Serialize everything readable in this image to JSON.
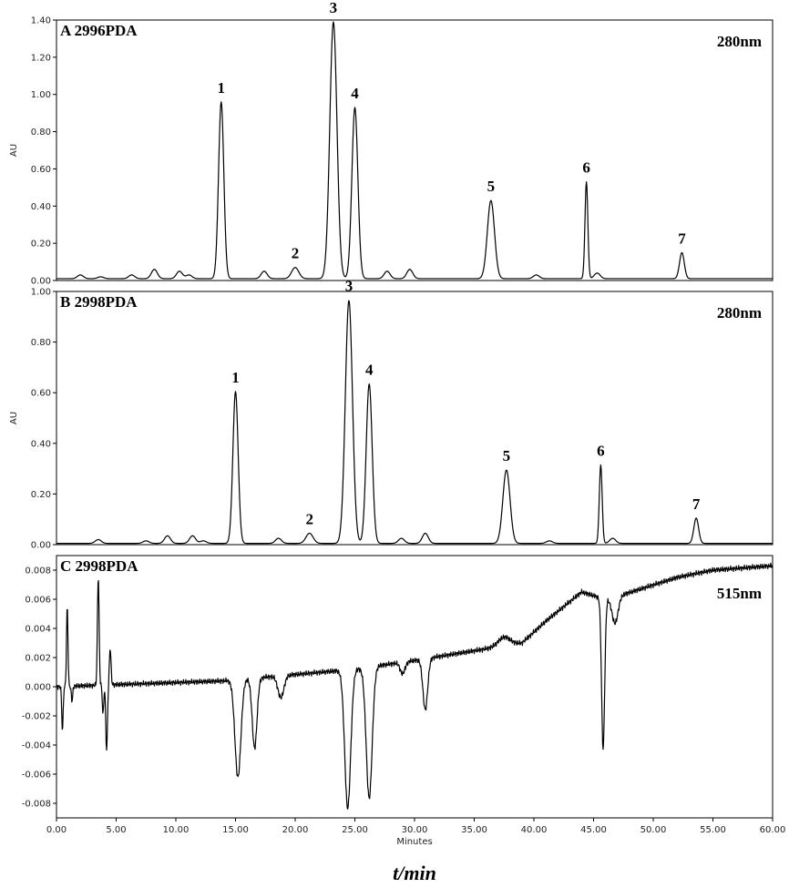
{
  "chart_data": [
    {
      "type": "line",
      "panel": "A",
      "title": "A 2996PDA",
      "wavelength": "280nm",
      "ylabel": "AU",
      "xlim": [
        0,
        60
      ],
      "ylim": [
        0,
        1.4
      ],
      "yticks": [
        0.0,
        0.2,
        0.4,
        0.6,
        0.8,
        1.0,
        1.2,
        1.4
      ],
      "ytick_labels": [
        "0.00",
        "0.20",
        "0.40",
        "0.60",
        "0.80",
        "1.00",
        "1.20",
        "1.40"
      ],
      "baseline": 0.01,
      "peaks": [
        {
          "label": "1",
          "t": 13.8,
          "h": 0.95,
          "w": 0.22
        },
        {
          "label": "2",
          "t": 20.0,
          "h": 0.06,
          "w": 0.3
        },
        {
          "label": "3",
          "t": 23.2,
          "h": 1.38,
          "w": 0.3
        },
        {
          "label": "4",
          "t": 25.0,
          "h": 0.92,
          "w": 0.25
        },
        {
          "label": "5",
          "t": 36.4,
          "h": 0.42,
          "w": 0.3
        },
        {
          "label": "6",
          "t": 44.4,
          "h": 0.52,
          "w": 0.12
        },
        {
          "label": "7",
          "t": 52.4,
          "h": 0.14,
          "w": 0.2
        }
      ],
      "minor_peaks": [
        {
          "t": 2.0,
          "h": 0.02
        },
        {
          "t": 3.7,
          "h": 0.01
        },
        {
          "t": 6.3,
          "h": 0.02
        },
        {
          "t": 8.2,
          "h": 0.05
        },
        {
          "t": 10.3,
          "h": 0.04
        },
        {
          "t": 11.1,
          "h": 0.02
        },
        {
          "t": 17.4,
          "h": 0.04
        },
        {
          "t": 27.7,
          "h": 0.04
        },
        {
          "t": 29.6,
          "h": 0.05
        },
        {
          "t": 40.2,
          "h": 0.02
        },
        {
          "t": 45.3,
          "h": 0.03
        }
      ]
    },
    {
      "type": "line",
      "panel": "B",
      "title": "B 2998PDA",
      "wavelength": "280nm",
      "ylabel": "AU",
      "xlim": [
        0,
        60
      ],
      "ylim": [
        0,
        1.0
      ],
      "yticks": [
        0.0,
        0.2,
        0.4,
        0.6,
        0.8,
        1.0
      ],
      "ytick_labels": [
        "0.00",
        "0.20",
        "0.40",
        "0.60",
        "0.80",
        "1.00"
      ],
      "baseline": 0.005,
      "peaks": [
        {
          "label": "1",
          "t": 15.0,
          "h": 0.6,
          "w": 0.22
        },
        {
          "label": "2",
          "t": 21.2,
          "h": 0.04,
          "w": 0.3
        },
        {
          "label": "3",
          "t": 24.5,
          "h": 0.96,
          "w": 0.3
        },
        {
          "label": "4",
          "t": 26.2,
          "h": 0.63,
          "w": 0.25
        },
        {
          "label": "5",
          "t": 37.7,
          "h": 0.29,
          "w": 0.3
        },
        {
          "label": "6",
          "t": 45.6,
          "h": 0.31,
          "w": 0.12
        },
        {
          "label": "7",
          "t": 53.6,
          "h": 0.1,
          "w": 0.2
        }
      ],
      "minor_peaks": [
        {
          "t": 3.5,
          "h": 0.015
        },
        {
          "t": 7.5,
          "h": 0.01
        },
        {
          "t": 9.3,
          "h": 0.03
        },
        {
          "t": 11.4,
          "h": 0.03
        },
        {
          "t": 12.3,
          "h": 0.01
        },
        {
          "t": 18.6,
          "h": 0.02
        },
        {
          "t": 28.9,
          "h": 0.02
        },
        {
          "t": 30.9,
          "h": 0.04
        },
        {
          "t": 41.3,
          "h": 0.01
        },
        {
          "t": 46.6,
          "h": 0.02
        }
      ]
    },
    {
      "type": "line",
      "panel": "C",
      "title": "C 2998PDA",
      "wavelength": "515nm",
      "ylabel": "",
      "xlabel": "Minutes",
      "xlim": [
        0,
        60
      ],
      "ylim": [
        -0.009,
        0.009
      ],
      "yticks": [
        -0.008,
        -0.006,
        -0.004,
        -0.002,
        0.0,
        0.002,
        0.004,
        0.006,
        0.008
      ],
      "ytick_labels": [
        "-0.008",
        "-0.006",
        "-0.004",
        "-0.002",
        "0.000",
        "0.002",
        "0.004",
        "0.006",
        "0.008"
      ],
      "xticks": [
        0,
        5,
        10,
        15,
        20,
        25,
        30,
        35,
        40,
        45,
        50,
        55,
        60
      ],
      "xtick_labels": [
        "0.00",
        "5.00",
        "10.00",
        "15.00",
        "20.00",
        "25.00",
        "30.00",
        "35.00",
        "40.00",
        "45.00",
        "50.00",
        "55.00",
        "60.00"
      ],
      "baseline_points": [
        [
          0,
          0.0
        ],
        [
          14,
          0.0004
        ],
        [
          25,
          0.0012
        ],
        [
          30,
          0.0018
        ],
        [
          36,
          0.0026
        ],
        [
          39,
          0.003
        ],
        [
          41,
          0.0045
        ],
        [
          44,
          0.0065
        ],
        [
          46,
          0.006
        ],
        [
          47,
          0.0062
        ],
        [
          52,
          0.0075
        ],
        [
          55,
          0.008
        ],
        [
          60,
          0.0083
        ]
      ],
      "features": [
        {
          "t": 0.5,
          "h": -0.003,
          "w": 0.06
        },
        {
          "t": 0.9,
          "h": 0.0055,
          "w": 0.06
        },
        {
          "t": 1.3,
          "h": -0.001,
          "w": 0.06
        },
        {
          "t": 3.5,
          "h": 0.0075,
          "w": 0.07
        },
        {
          "t": 3.9,
          "h": -0.002,
          "w": 0.06
        },
        {
          "t": 4.2,
          "h": -0.0045,
          "w": 0.07
        },
        {
          "t": 4.5,
          "h": 0.0025,
          "w": 0.07
        },
        {
          "t": 15.2,
          "h": -0.0067,
          "w": 0.25
        },
        {
          "t": 16.6,
          "h": -0.0048,
          "w": 0.2
        },
        {
          "t": 18.8,
          "h": -0.0015,
          "w": 0.25
        },
        {
          "t": 24.4,
          "h": -0.0095,
          "w": 0.25
        },
        {
          "t": 26.2,
          "h": -0.009,
          "w": 0.25
        },
        {
          "t": 29.0,
          "h": -0.0008,
          "w": 0.2
        },
        {
          "t": 30.9,
          "h": -0.0035,
          "w": 0.2
        },
        {
          "t": 37.5,
          "h": 0.0006,
          "w": 0.5
        },
        {
          "t": 45.8,
          "h": -0.0103,
          "w": 0.13
        },
        {
          "t": 46.8,
          "h": -0.0018,
          "w": 0.25
        }
      ]
    }
  ],
  "bottom_title": "t/min"
}
